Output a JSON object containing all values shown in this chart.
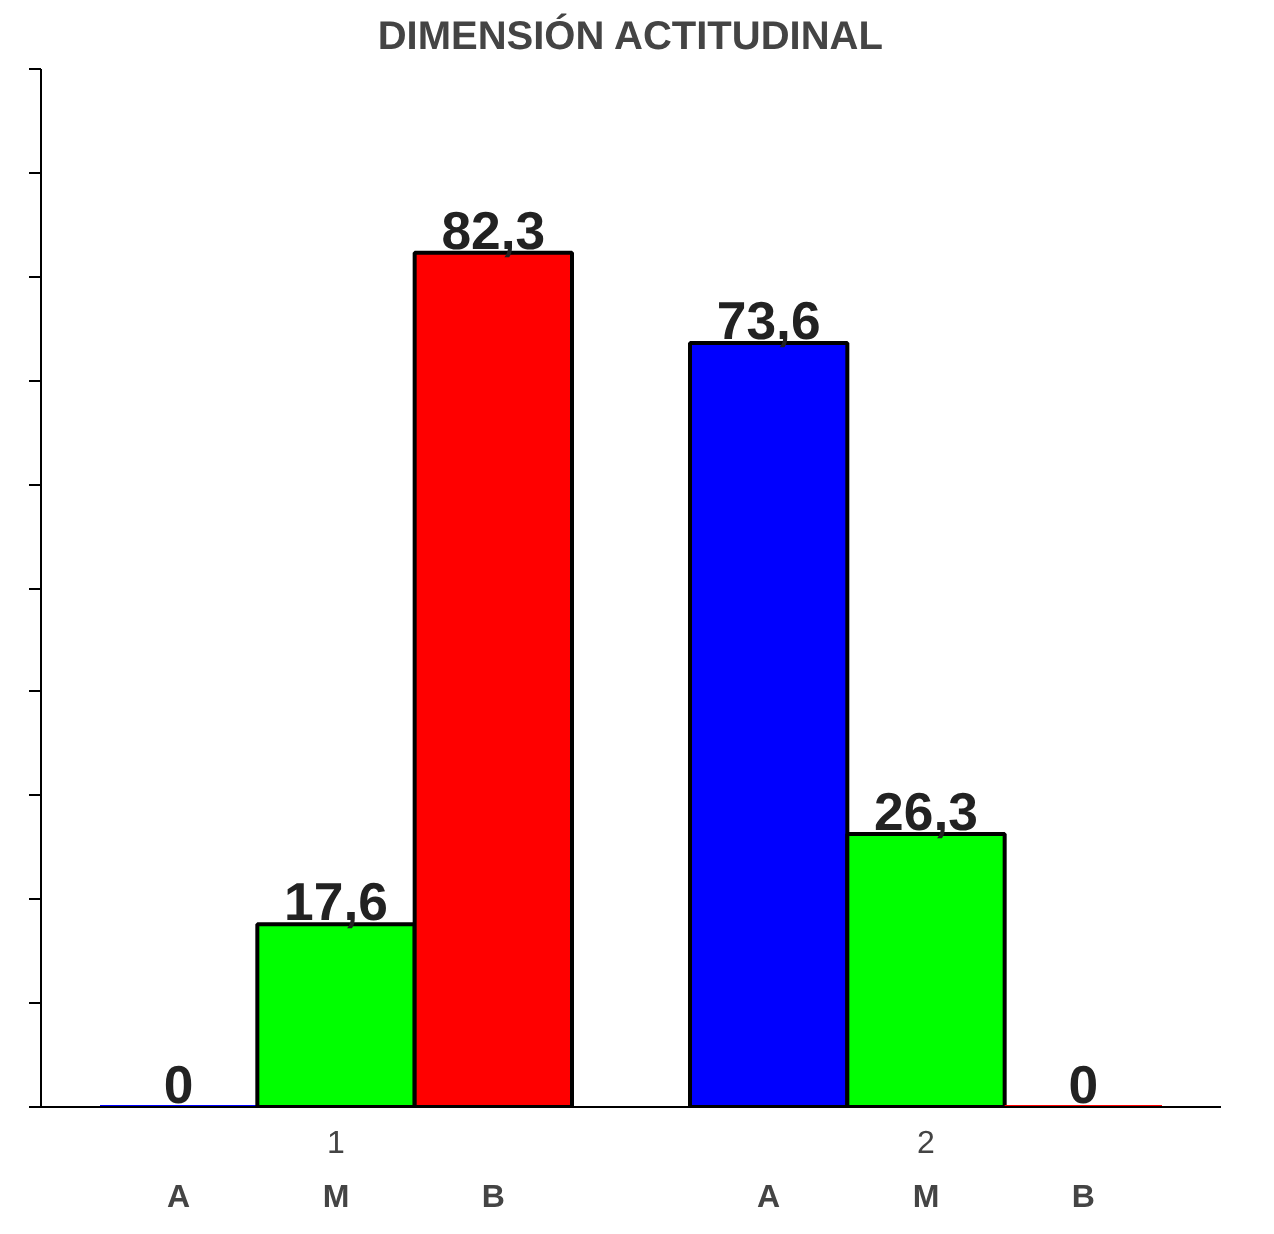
{
  "chart_data": {
    "type": "bar",
    "title": "DIMENSIÓN ACTITUDINAL",
    "categories": [
      "1",
      "2"
    ],
    "series": [
      {
        "name": "A",
        "color": "#0000ff",
        "values": [
          0,
          73.6
        ],
        "value_labels": [
          "0",
          "73,6"
        ]
      },
      {
        "name": "M",
        "color": "#00ff00",
        "values": [
          17.6,
          26.3
        ],
        "value_labels": [
          "17,6",
          "26,3"
        ]
      },
      {
        "name": "B",
        "color": "#ff0000",
        "values": [
          82.3,
          0
        ],
        "value_labels": [
          "82,3",
          "0"
        ]
      }
    ],
    "ylim": [
      0,
      100
    ],
    "yticks": [
      {
        "value": 0,
        "label": null
      },
      {
        "value": 10,
        "label": null
      },
      {
        "value": 20,
        "label": null
      },
      {
        "value": 30,
        "label": null
      },
      {
        "value": 40,
        "label": null
      },
      {
        "value": 50,
        "label": null
      },
      {
        "value": 60,
        "label": null
      },
      {
        "value": 70,
        "label": null
      },
      {
        "value": 80,
        "label": null
      },
      {
        "value": 90,
        "label": null
      },
      {
        "value": 100,
        "label": null
      }
    ],
    "grid": false
  }
}
